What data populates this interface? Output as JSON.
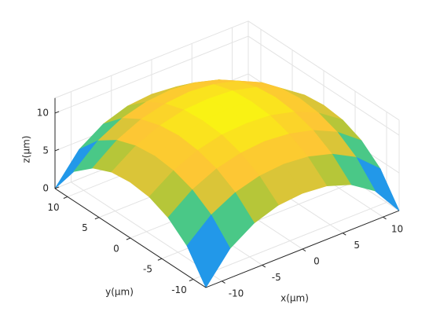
{
  "chart_data": {
    "type": "surface",
    "x": [
      -12,
      -9,
      -6,
      -3,
      0,
      3,
      6,
      9,
      12
    ],
    "y": [
      -12,
      -9,
      -6,
      -3,
      0,
      3,
      6,
      9,
      12
    ],
    "z": [
      [
        0,
        3.9,
        6,
        7.1,
        7.4,
        7.1,
        6,
        3.9,
        0
      ],
      [
        3.9,
        6.7,
        8.4,
        9.3,
        9.6,
        9.3,
        8.4,
        6.7,
        3.9
      ],
      [
        6,
        8.4,
        9.9,
        10.7,
        11,
        10.7,
        9.9,
        8.4,
        6
      ],
      [
        7.1,
        9.3,
        10.7,
        11.5,
        11.7,
        11.5,
        10.7,
        9.3,
        7.1
      ],
      [
        7.4,
        9.6,
        11,
        11.7,
        12,
        11.7,
        11,
        9.6,
        7.4
      ],
      [
        7.1,
        9.3,
        10.7,
        11.5,
        11.7,
        11.5,
        10.7,
        9.3,
        7.1
      ],
      [
        6,
        8.4,
        9.9,
        10.7,
        11,
        10.7,
        9.9,
        8.4,
        6
      ],
      [
        3.9,
        6.7,
        8.4,
        9.3,
        9.6,
        9.3,
        8.4,
        6.7,
        3.9
      ],
      [
        0,
        3.9,
        6,
        7.1,
        7.4,
        7.1,
        6,
        3.9,
        0
      ]
    ],
    "xlim": [
      -12,
      12
    ],
    "ylim": [
      -12,
      12
    ],
    "zlim": [
      0,
      12
    ],
    "xticks": [
      -10,
      -5,
      0,
      5,
      10
    ],
    "yticks": [
      -10,
      -5,
      0,
      5,
      10
    ],
    "zticks": [
      0,
      5,
      10
    ],
    "xlabel": "x(μm)",
    "ylabel": "y(μm)",
    "zlabel": "z(μm)",
    "grid": true,
    "colormap": "parula"
  }
}
